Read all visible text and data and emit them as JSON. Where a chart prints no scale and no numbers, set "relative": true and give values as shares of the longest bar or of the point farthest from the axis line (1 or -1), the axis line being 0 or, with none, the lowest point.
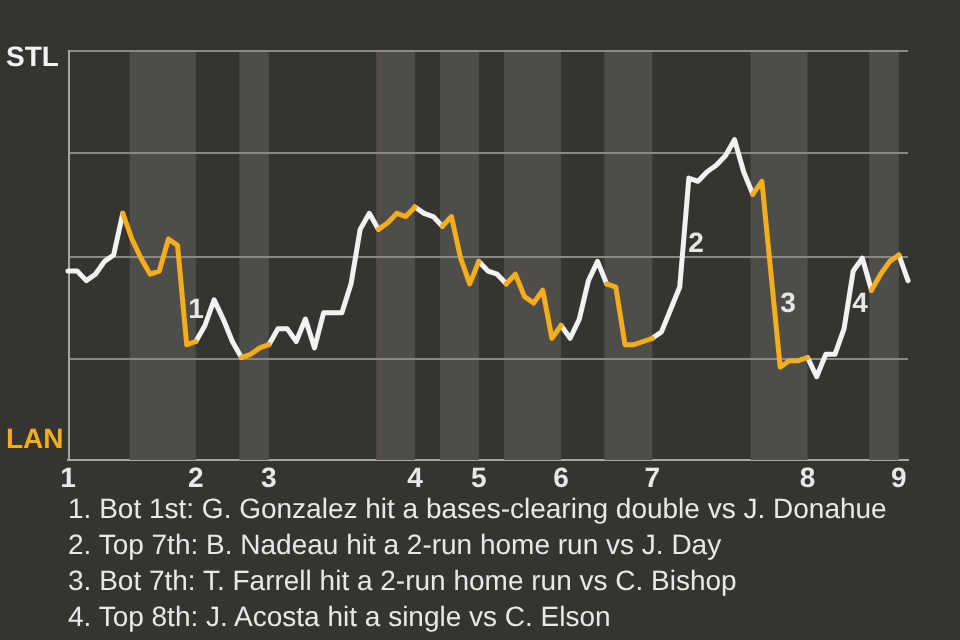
{
  "chart_data": {
    "type": "line",
    "relative": true,
    "categories": [
      "1",
      null,
      null,
      null,
      null,
      null,
      null,
      null,
      null,
      null,
      null,
      null,
      null,
      null,
      "2",
      null,
      null,
      null,
      null,
      null,
      null,
      null,
      "3",
      null,
      null,
      null,
      null,
      null,
      null,
      null,
      null,
      null,
      null,
      null,
      null,
      null,
      null,
      null,
      "4",
      null,
      null,
      null,
      null,
      null,
      null,
      "5",
      null,
      null,
      null,
      null,
      null,
      null,
      null,
      null,
      "6",
      null,
      null,
      null,
      null,
      null,
      null,
      null,
      null,
      null,
      "7",
      null,
      null,
      null,
      null,
      null,
      null,
      null,
      null,
      null,
      null,
      null,
      null,
      null,
      null,
      null,
      null,
      "8",
      null,
      null,
      null,
      null,
      null,
      null,
      null,
      null,
      null,
      "9",
      null
    ],
    "grid": "y",
    "legend": false,
    "marker": "none",
    "line_style": "solid",
    "series": [
      {
        "color": "#f2f2f2",
        "values": [
          0.59,
          0.59,
          0.56,
          0.58,
          0.62,
          0.64,
          0.77,
          null,
          null,
          null,
          null,
          null,
          null,
          null,
          0.37,
          0.42,
          0.5,
          0.44,
          0.37,
          0.32,
          null,
          null,
          0.36,
          0.41,
          0.41,
          0.37,
          0.44,
          0.35,
          0.46,
          0.46,
          0.46,
          0.55,
          0.72,
          0.77,
          0.72,
          null,
          null,
          null,
          0.79,
          0.77,
          0.76,
          0.73,
          null,
          null,
          null,
          0.62,
          0.59,
          0.58,
          0.55,
          null,
          null,
          null,
          null,
          null,
          0.42,
          0.38,
          0.44,
          0.56,
          0.62,
          0.55,
          null,
          null,
          null,
          null,
          0.38,
          0.4,
          0.47,
          0.54,
          0.88,
          0.87,
          0.9,
          0.92,
          0.95,
          1,
          0.9,
          0.83,
          null,
          null,
          null,
          null,
          null,
          0.32,
          0.26,
          0.33,
          0.33,
          0.41,
          0.59,
          0.63,
          0.53,
          null,
          null,
          0.64,
          0.56
        ]
      },
      {
        "color": "#f5ae1b",
        "values": [
          null,
          null,
          null,
          null,
          null,
          null,
          0.77,
          0.69,
          0.63,
          0.58,
          0.59,
          0.69,
          0.67,
          0.36,
          0.37,
          null,
          null,
          null,
          null,
          0.32,
          0.33,
          0.35,
          0.36,
          null,
          null,
          null,
          null,
          null,
          null,
          null,
          null,
          null,
          null,
          null,
          0.72,
          0.74,
          0.77,
          0.76,
          0.79,
          null,
          null,
          0.73,
          0.76,
          0.63,
          0.55,
          0.62,
          null,
          null,
          0.55,
          0.58,
          0.51,
          0.49,
          0.53,
          0.38,
          0.42,
          null,
          null,
          null,
          null,
          0.55,
          0.54,
          0.36,
          0.36,
          0.37,
          0.38,
          null,
          null,
          null,
          null,
          null,
          null,
          null,
          null,
          null,
          null,
          0.83,
          0.87,
          0.58,
          0.29,
          0.31,
          0.31,
          0.32,
          null,
          null,
          null,
          null,
          null,
          null,
          0.53,
          0.58,
          0.62,
          0.64,
          null
        ]
      }
    ],
    "annotations": [
      "STL",
      "LAN",
      "1",
      "2",
      "3",
      "4",
      "1. Bot 1st: G. Gonzalez hit a bases-clearing double vs J. Donahue",
      "2. Top 7th: B. Nadeau hit a 2-run home run vs J. Day",
      "3. Bot 7th: T. Farrell hit a 2-run home run vs C. Bishop",
      "4. Top 8th: J. Acosta hit a single vs C. Elson"
    ]
  }
}
